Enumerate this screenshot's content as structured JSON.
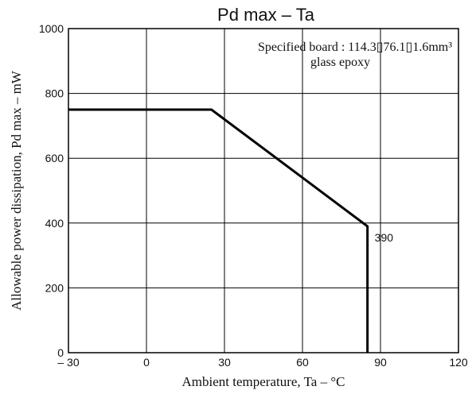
{
  "chart_data": {
    "type": "line",
    "title": "Pd max  –  Ta",
    "xlabel": "Ambient temperature,  Ta  –  °C",
    "ylabel": "Allowable power dissipation,  Pd max  –  mW",
    "xlim": [
      -30,
      120
    ],
    "ylim": [
      0,
      1000
    ],
    "xticks": [
      -30,
      0,
      30,
      60,
      90,
      120
    ],
    "yticks": [
      0,
      200,
      400,
      600,
      800,
      1000
    ],
    "xtick_labels": [
      "– 30",
      "0",
      "30",
      "60",
      "90",
      "120"
    ],
    "ytick_labels": [
      "0",
      "200",
      "400",
      "600",
      "800",
      "1000"
    ],
    "grid": true,
    "legend": "none",
    "series": [
      {
        "x": [
          -30,
          25,
          85,
          85
        ],
        "y": [
          750,
          750,
          390,
          0
        ]
      }
    ],
    "annotations": [
      {
        "text": "390",
        "x": 85,
        "y": 390
      }
    ],
    "board_note": {
      "line1": "Specified board : 114.3▯76.1▯1.6mm³",
      "line2": "glass epoxy"
    }
  }
}
